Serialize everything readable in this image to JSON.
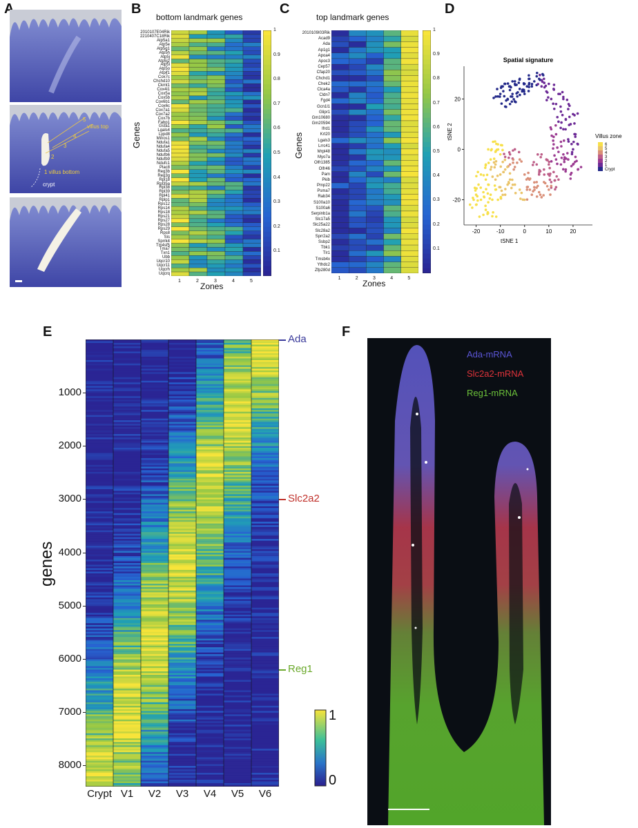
{
  "panels": {
    "A": "A",
    "B": "B",
    "C": "C",
    "D": "D",
    "E": "E",
    "F": "F"
  },
  "panel_a": {
    "scale_bar": "",
    "annotations": {
      "villus_top": "villus top",
      "zone5": "5",
      "zone4": "4",
      "zone3": "3",
      "zone2": "2",
      "villus_bottom": "1 villus bottom",
      "crypt": "crypt"
    }
  },
  "panel_b": {
    "title": "bottom landmark genes",
    "ylabel": "Genes",
    "xlabel": "Zones",
    "zones": [
      "1",
      "2",
      "3",
      "4",
      "5"
    ],
    "colorbar_ticks": [
      "1",
      "0.9",
      "0.8",
      "0.7",
      "0.6",
      "0.5",
      "0.4",
      "0.3",
      "0.2",
      "0.1"
    ],
    "genes": [
      "2010107E04Rik",
      "2210407C18Rik",
      "Atp5a1",
      "Atp5e",
      "Atp5g1",
      "Atp5h",
      "Atp5j",
      "Atp5j2",
      "Atp5l",
      "Atp5o",
      "Atpif1",
      "Cox7c",
      "Chchd10",
      "Ckmt1",
      "Cox4i1",
      "Cox5a",
      "Cox5b",
      "Cox6b1",
      "Cox6c",
      "Cox7a1",
      "Cox7a2",
      "Cox7b",
      "Fabp1",
      "Gsta1",
      "Lgals4",
      "Lypd8",
      "Minos1",
      "Ndufa1",
      "Ndufa4",
      "Ndufa5",
      "Ndufb6",
      "Ndufb9",
      "Ndufc1",
      "Plac8",
      "Reg3b",
      "Reg3g",
      "Rpl18",
      "Rpl35a",
      "Rpl38",
      "Rpl39",
      "Rpl41",
      "Rplp1",
      "Rps12",
      "Rps14",
      "Rps18",
      "Rps21",
      "Rps27",
      "Rps28",
      "Rps29",
      "Rps8",
      "Sis",
      "Sprrk4",
      "Tm4sf5",
      "Tma7",
      "Txn1",
      "Ubb",
      "Uqcr10",
      "Uqcr11",
      "Uqcrh",
      "Uqcrq"
    ]
  },
  "panel_c": {
    "title": "top landmark genes",
    "ylabel": "Genes",
    "xlabel": "Zones",
    "zones": [
      "1",
      "2",
      "3",
      "4",
      "5"
    ],
    "colorbar_ticks": [
      "1",
      "0.9",
      "0.8",
      "0.7",
      "0.6",
      "0.5",
      "0.4",
      "0.3",
      "0.2",
      "0.1"
    ],
    "genes": [
      "2010109I03Rik",
      "Acad9",
      "Ada",
      "Ap1g1",
      "Apoa4",
      "Apoc3",
      "Cep57",
      "Cfap20",
      "Chchd1",
      "Chek2",
      "Clca4a",
      "Cldn7",
      "Fgd4",
      "Gcn1l1",
      "Glipr1",
      "Gm10680",
      "Gm20594",
      "Ifrd1",
      "Krt20",
      "Lgals3",
      "Lrrc41",
      "Mrpl48",
      "Myo7a",
      "Olfr1385",
      "Olfr46",
      "Pam",
      "Pkib",
      "Pmp22",
      "Psma7",
      "Rab34",
      "S100a10",
      "S100a6",
      "Serpinb1a",
      "Slc17a5",
      "Slc25a22",
      "Slc28a2",
      "Sprr2a2",
      "Ssbp2",
      "Tbk1",
      "Tlr1",
      "Tmsb4x",
      "Ythdc2",
      "Zfp280d"
    ]
  },
  "panel_d": {
    "chart_data": {
      "type": "scatter",
      "title": "Spatial signature",
      "xlabel": "tSNE 1",
      "ylabel": "tSNE 2",
      "x_ticks": [
        -20,
        -10,
        0,
        10,
        20
      ],
      "y_ticks": [
        -20,
        0,
        20
      ],
      "xlim": [
        -25,
        28
      ],
      "ylim": [
        -30,
        33
      ],
      "legend_title": "Villus zone",
      "legend_labels": [
        "6",
        "5",
        "4",
        "3",
        "2",
        "1",
        "Crypt"
      ],
      "legend_colors": [
        "#f7e04a",
        "#eac46a",
        "#d98f78",
        "#bd5e88",
        "#9c3c92",
        "#6c2a96",
        "#242a8a"
      ],
      "clusters": [
        {
          "zone": "Crypt",
          "color": "#242a8a",
          "points": [
            [
              -8,
              26
            ],
            [
              -6,
              25
            ],
            [
              -4,
              27
            ],
            [
              -2,
              24
            ],
            [
              0,
              26
            ],
            [
              -10,
              22
            ],
            [
              -7,
              20
            ],
            [
              -5,
              22
            ],
            [
              -3,
              21
            ],
            [
              -1,
              23
            ],
            [
              2,
              28
            ],
            [
              4,
              27
            ],
            [
              6,
              28
            ],
            [
              -9,
              25
            ],
            [
              -6,
              18
            ],
            [
              -4,
              19
            ],
            [
              -8,
              17
            ],
            [
              1,
              25
            ],
            [
              3,
              25
            ],
            [
              5,
              29
            ],
            [
              -11,
              21
            ],
            [
              -5,
              27
            ],
            [
              -2,
              28
            ],
            [
              0,
              22
            ]
          ]
        },
        {
          "zone": "1",
          "color": "#6c2a96",
          "points": [
            [
              8,
              28
            ],
            [
              10,
              26
            ],
            [
              12,
              24
            ],
            [
              14,
              22
            ],
            [
              16,
              20
            ],
            [
              18,
              16
            ],
            [
              20,
              14
            ],
            [
              17,
              12
            ],
            [
              15,
              15
            ],
            [
              13,
              18
            ],
            [
              11,
              20
            ],
            [
              9,
              23
            ],
            [
              19,
              10
            ],
            [
              21,
              6
            ],
            [
              22,
              2
            ],
            [
              20,
              0
            ],
            [
              18,
              4
            ],
            [
              16,
              8
            ],
            [
              14,
              11
            ],
            [
              7,
              25
            ]
          ]
        },
        {
          "zone": "2",
          "color": "#9c3c92",
          "points": [
            [
              16,
              -2
            ],
            [
              18,
              -4
            ],
            [
              20,
              -6
            ],
            [
              22,
              -8
            ],
            [
              14,
              -1
            ],
            [
              12,
              2
            ],
            [
              13,
              6
            ],
            [
              15,
              3
            ],
            [
              17,
              -8
            ],
            [
              19,
              -10
            ],
            [
              21,
              -3
            ],
            [
              11,
              8
            ],
            [
              15,
              -6
            ],
            [
              13,
              -4
            ]
          ]
        },
        {
          "zone": "3",
          "color": "#bd5e88",
          "points": [
            [
              10,
              -6
            ],
            [
              8,
              -8
            ],
            [
              6,
              -10
            ],
            [
              12,
              -9
            ],
            [
              14,
              -12
            ],
            [
              11,
              -13
            ],
            [
              9,
              -4
            ],
            [
              7,
              -2
            ],
            [
              5,
              -6
            ],
            [
              13,
              -15
            ],
            [
              10,
              -10
            ],
            [
              -6,
              -2
            ],
            [
              -4,
              0
            ],
            [
              -8,
              -3
            ]
          ]
        },
        {
          "zone": "4",
          "color": "#d98f78",
          "points": [
            [
              2,
              -12
            ],
            [
              4,
              -15
            ],
            [
              6,
              -17
            ],
            [
              8,
              -13
            ],
            [
              10,
              -16
            ],
            [
              3,
              -18
            ],
            [
              5,
              -13
            ],
            [
              7,
              -19
            ],
            [
              0,
              -10
            ],
            [
              1,
              -16
            ],
            [
              -2,
              -4
            ],
            [
              -4,
              -7
            ],
            [
              -6,
              -6
            ]
          ]
        },
        {
          "zone": "5",
          "color": "#eac46a",
          "points": [
            [
              -12,
              -6
            ],
            [
              -10,
              -10
            ],
            [
              -8,
              -8
            ],
            [
              -6,
              -12
            ],
            [
              -4,
              -14
            ],
            [
              -2,
              -16
            ],
            [
              0,
              -20
            ],
            [
              -10,
              -15
            ],
            [
              -8,
              -18
            ],
            [
              -12,
              -12
            ],
            [
              -14,
              -8
            ],
            [
              -9,
              -5
            ],
            [
              -7,
              -14
            ]
          ]
        },
        {
          "zone": "6",
          "color": "#f7e04a",
          "points": [
            [
              -20,
              -22
            ],
            [
              -18,
              -20
            ],
            [
              -16,
              -24
            ],
            [
              -14,
              -18
            ],
            [
              -12,
              -16
            ],
            [
              -19,
              -14
            ],
            [
              -17,
              -17
            ],
            [
              -15,
              -21
            ],
            [
              -13,
              -25
            ],
            [
              -20,
              -18
            ],
            [
              -11,
              -20
            ],
            [
              -16,
              -12
            ],
            [
              -18,
              -10
            ],
            [
              -14,
              -4
            ],
            [
              -12,
              -1
            ],
            [
              -15,
              0
            ],
            [
              -13,
              3
            ],
            [
              -11,
              2
            ],
            [
              -16,
              -6
            ],
            [
              -10,
              -2
            ],
            [
              -21,
              -20
            ],
            [
              -17,
              -26
            ],
            [
              -15,
              -14
            ]
          ]
        }
      ]
    }
  },
  "panel_e": {
    "ylabel": "genes",
    "y_ticks": [
      "1000",
      "2000",
      "3000",
      "4000",
      "5000",
      "6000",
      "7000",
      "8000"
    ],
    "columns": [
      "Crypt",
      "V1",
      "V2",
      "V3",
      "V4",
      "V5",
      "V6"
    ],
    "colorbar_top": "1",
    "colorbar_bottom": "0",
    "markers": [
      {
        "label": "Ada",
        "color": "#3a3a9a",
        "gene_index": 0
      },
      {
        "label": "Slc2a2",
        "color": "#c0302a",
        "gene_index": 3000
      },
      {
        "label": "Reg1",
        "color": "#6aa82a",
        "gene_index": 6200
      }
    ]
  },
  "panel_f": {
    "legend": [
      {
        "label": "Ada-mRNA",
        "color": "#5b55d6"
      },
      {
        "label": "Slc2a2-mRNA",
        "color": "#e0333a"
      },
      {
        "label": "Reg1-mRNA",
        "color": "#6cc23a"
      }
    ]
  }
}
